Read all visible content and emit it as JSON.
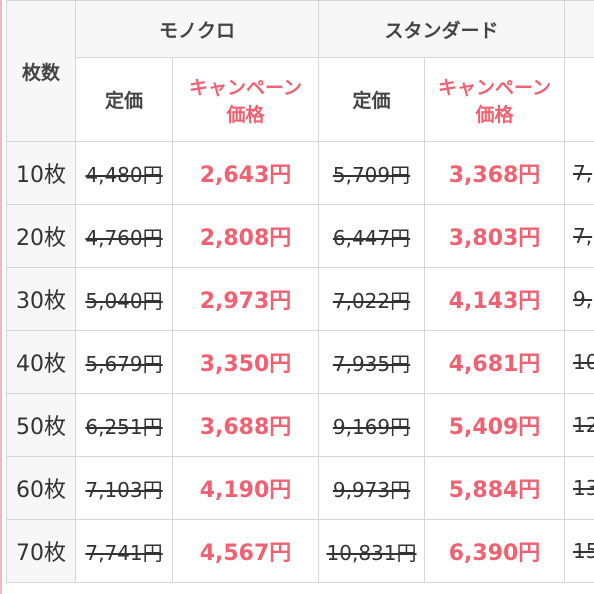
{
  "header": {
    "quantity_label": "枚数",
    "groups": [
      "モノクロ",
      "スタンダード"
    ],
    "regular_label": "定価",
    "campaign_label_line1": "キャンペーン",
    "campaign_label_line2": "価格"
  },
  "rows": [
    {
      "qty": "10枚",
      "mono_regular": "4,480円",
      "mono_campaign": "2,643円",
      "std_regular": "5,709円",
      "std_campaign": "3,368円",
      "next_regular": "7,"
    },
    {
      "qty": "20枚",
      "mono_regular": "4,760円",
      "mono_campaign": "2,808円",
      "std_regular": "6,447円",
      "std_campaign": "3,803円",
      "next_regular": "7,"
    },
    {
      "qty": "30枚",
      "mono_regular": "5,040円",
      "mono_campaign": "2,973円",
      "std_regular": "7,022円",
      "std_campaign": "4,143円",
      "next_regular": "9,"
    },
    {
      "qty": "40枚",
      "mono_regular": "5,679円",
      "mono_campaign": "3,350円",
      "std_regular": "7,935円",
      "std_campaign": "4,681円",
      "next_regular": "10"
    },
    {
      "qty": "50枚",
      "mono_regular": "6,251円",
      "mono_campaign": "3,688円",
      "std_regular": "9,169円",
      "std_campaign": "5,409円",
      "next_regular": "12"
    },
    {
      "qty": "60枚",
      "mono_regular": "7,103円",
      "mono_campaign": "4,190円",
      "std_regular": "9,973円",
      "std_campaign": "5,884円",
      "next_regular": "13"
    },
    {
      "qty": "70枚",
      "mono_regular": "7,741円",
      "mono_campaign": "4,567円",
      "std_regular": "10,831円",
      "std_campaign": "6,390円",
      "next_regular": "15"
    }
  ],
  "colors": {
    "campaign_red": "#f06272",
    "header_bg": "#f7f7f7",
    "border": "#d6d6d6",
    "left_accent": "#f3b9b9"
  }
}
